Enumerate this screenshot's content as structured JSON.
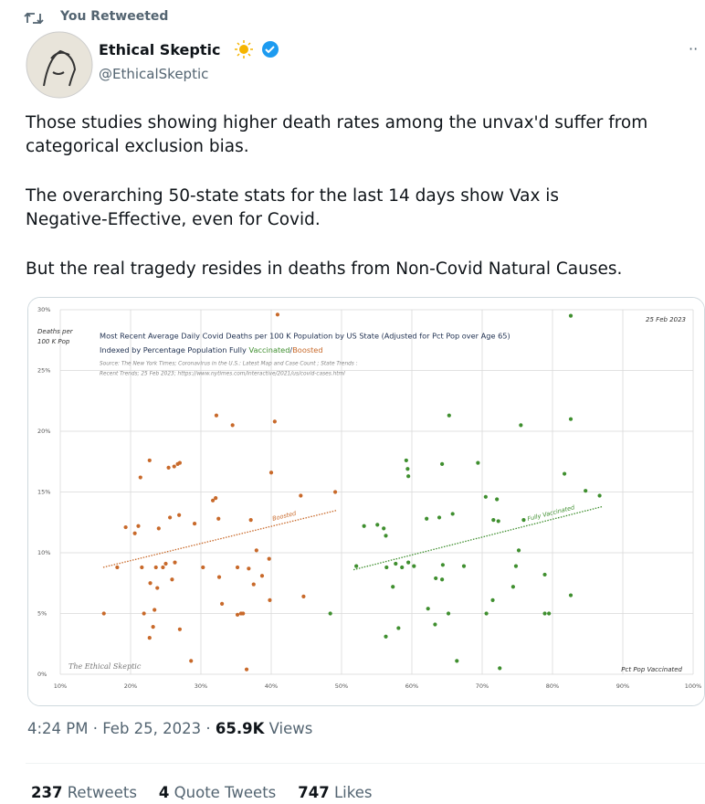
{
  "header": {
    "retweeted": "You Retweeted",
    "name": "Ethical Skeptic",
    "handle": "@EthicalSkeptic",
    "more": "··"
  },
  "text": [
    [
      "Those studies showing higher death rates among the unvax'd suffer from",
      "categorical exclusion bias."
    ],
    [
      "The overarching 50-state stats for the last 14 days show Vax is",
      "Negative-Effective, even for Covid."
    ],
    [
      "But the real tragedy resides in deaths from Non-Covid Natural Causes."
    ]
  ],
  "meta": {
    "time": "4:24 PM · Feb 25, 2023 · ",
    "views": "65.9K",
    "views_label": " Views"
  },
  "stats": [
    {
      "count": "237",
      "label": "Retweets"
    },
    {
      "count": "4",
      "label": "Quote Tweets"
    },
    {
      "count": "747",
      "label": "Likes"
    }
  ],
  "chart_data": {
    "type": "scatter",
    "title": "Most Recent Average Daily Covid Deaths per 100 K Population by US State (Adjusted for Pct Pop over Age 65)",
    "subtitle": [
      "Indexed by Percentage Population Fully ",
      "Vaccinated",
      "/",
      "Boosted"
    ],
    "source": [
      "Source: The New York Times; Coronavirus in the U.S.: Latest Map and Case Count ; State Trends :",
      "Recent Trends; 25 Feb 2023; https://www.nytimes.com/interactive/2021/us/covid-cases.html"
    ],
    "date": "25 Feb 2023",
    "ylabel": [
      "Deaths per",
      "100 K Pop"
    ],
    "xlabel": "Pct Pop Vaccinated",
    "watermark": "The Ethical Skeptic",
    "xlim": [
      10,
      100
    ],
    "ylim": [
      0,
      30
    ],
    "grid": true,
    "xticks": [
      {
        "value": 10,
        "label": "10%"
      },
      {
        "value": 20,
        "label": "20%"
      },
      {
        "value": 30,
        "label": "30%"
      },
      {
        "value": 40,
        "label": "40%"
      },
      {
        "value": 50,
        "label": "50%"
      },
      {
        "value": 60,
        "label": "60%"
      },
      {
        "value": 70,
        "label": "70%"
      },
      {
        "value": 80,
        "label": "80%"
      },
      {
        "value": 90,
        "label": "90%"
      },
      {
        "value": 100,
        "label": "100%"
      }
    ],
    "yticks": [
      {
        "value": 0,
        "label": "0%"
      },
      {
        "value": 5,
        "label": "5%"
      },
      {
        "value": 10,
        "label": "10%"
      },
      {
        "value": 15,
        "label": "15%"
      },
      {
        "value": 20,
        "label": "20%"
      },
      {
        "value": 25,
        "label": "25%"
      },
      {
        "value": 30,
        "label": "30%"
      }
    ],
    "series": [
      {
        "name": "Boosted",
        "color": "#c8692a",
        "x": [
          16.2,
          18.1,
          19.3,
          20.6,
          21.1,
          21.4,
          21.6,
          21.9,
          22.7,
          22.7,
          22.8,
          23.2,
          23.4,
          23.6,
          23.8,
          24.0,
          24.6,
          25.0,
          25.4,
          25.6,
          25.9,
          26.2,
          26.3,
          26.7,
          26.9,
          27.0,
          27.0,
          28.6,
          29.1,
          30.3,
          31.7,
          32.1,
          32.2,
          32.5,
          32.6,
          33.0,
          34.5,
          35.2,
          35.2,
          35.7,
          36.0,
          36.5,
          36.8,
          37.1,
          37.5,
          37.9,
          38.7,
          39.7,
          39.8,
          40.0,
          40.5,
          40.9,
          44.2,
          44.6,
          49.1
        ],
        "values": [
          5.0,
          8.8,
          12.1,
          11.6,
          12.2,
          16.2,
          8.8,
          5.0,
          17.6,
          3.0,
          7.5,
          3.9,
          5.3,
          8.8,
          7.1,
          12.0,
          8.8,
          9.1,
          17.0,
          12.9,
          7.8,
          17.1,
          9.2,
          17.3,
          13.1,
          17.4,
          3.7,
          1.1,
          12.4,
          8.8,
          14.3,
          14.5,
          21.3,
          12.8,
          8.0,
          5.8,
          20.5,
          8.8,
          4.9,
          5.0,
          5.0,
          0.4,
          8.7,
          12.7,
          7.4,
          10.2,
          8.1,
          9.5,
          6.1,
          16.6,
          20.8,
          29.6,
          14.7,
          6.4,
          15.0
        ],
        "trend": {
          "x": [
            16.1,
            49.4
          ],
          "values": [
            8.8,
            13.5
          ]
        }
      },
      {
        "name": "Fully Vaccinated",
        "color": "#3f8f2f",
        "x": [
          48.4,
          52.1,
          53.2,
          55.1,
          56.0,
          56.3,
          56.3,
          56.4,
          57.3,
          57.7,
          58.1,
          58.6,
          59.2,
          59.4,
          59.5,
          59.5,
          60.3,
          62.1,
          62.3,
          63.3,
          63.4,
          63.9,
          64.3,
          64.3,
          64.4,
          65.2,
          65.3,
          65.8,
          66.4,
          67.4,
          69.4,
          70.5,
          70.6,
          71.5,
          71.6,
          72.1,
          72.3,
          72.5,
          74.4,
          74.8,
          75.2,
          75.5,
          75.9,
          78.9,
          78.9,
          79.5,
          81.7,
          82.6,
          82.6,
          82.6,
          84.7,
          86.7
        ],
        "values": [
          5.0,
          8.9,
          12.2,
          12.3,
          12.0,
          11.4,
          3.1,
          8.8,
          7.2,
          9.1,
          3.8,
          8.8,
          17.6,
          16.9,
          16.3,
          9.2,
          8.9,
          12.8,
          5.4,
          4.1,
          7.9,
          12.9,
          17.3,
          7.8,
          9.0,
          5.0,
          21.3,
          13.2,
          1.1,
          8.9,
          17.4,
          14.6,
          5.0,
          6.1,
          12.7,
          14.4,
          12.6,
          0.5,
          7.2,
          8.9,
          10.2,
          20.5,
          12.7,
          8.2,
          5.0,
          5.0,
          16.5,
          29.5,
          21.0,
          6.5,
          15.1,
          14.7
        ],
        "trend": {
          "x": [
            51.7,
            87.1
          ],
          "values": [
            8.6,
            13.8
          ]
        }
      }
    ]
  }
}
